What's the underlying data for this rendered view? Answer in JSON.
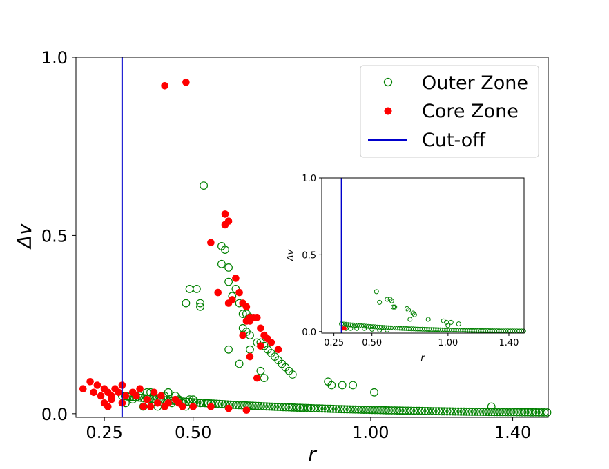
{
  "chart_data": [
    {
      "type": "scatter",
      "role": "main",
      "xlabel": "r",
      "ylabel": "Δv",
      "xlim": [
        0.17,
        1.5
      ],
      "ylim": [
        -0.01,
        1.0
      ],
      "xticks": [
        0.25,
        0.5,
        1.0,
        1.4
      ],
      "xtick_labels": [
        "0.25",
        "0.50",
        "1.00",
        "1.40"
      ],
      "yticks": [
        0.0,
        0.5,
        1.0
      ],
      "ytick_labels": [
        "0.0",
        "0.5",
        "1.0"
      ],
      "cutoff_x": 0.3,
      "legend": {
        "placement": "top-right",
        "entries": [
          {
            "label": "Outer Zone",
            "marker": "open-circle",
            "color": "#008000"
          },
          {
            "label": "Core Zone",
            "marker": "filled-circle",
            "color": "#ff0000"
          },
          {
            "label": "Cut-off",
            "marker": "line",
            "color": "#0000cc"
          }
        ]
      },
      "series": [
        {
          "name": "Outer Zone",
          "color": "#008000",
          "points": [
            [
              0.49,
              0.35
            ],
            [
              0.51,
              0.35
            ],
            [
              0.48,
              0.31
            ],
            [
              0.52,
              0.31
            ],
            [
              0.52,
              0.3
            ],
            [
              0.53,
              0.64
            ],
            [
              0.58,
              0.47
            ],
            [
              0.59,
              0.46
            ],
            [
              0.58,
              0.42
            ],
            [
              0.6,
              0.41
            ],
            [
              0.6,
              0.37
            ],
            [
              0.62,
              0.35
            ],
            [
              0.61,
              0.33
            ],
            [
              0.63,
              0.31
            ],
            [
              0.64,
              0.28
            ],
            [
              0.65,
              0.28
            ],
            [
              0.66,
              0.27
            ],
            [
              0.64,
              0.24
            ],
            [
              0.65,
              0.23
            ],
            [
              0.66,
              0.22
            ],
            [
              0.68,
              0.2
            ],
            [
              0.69,
              0.2
            ],
            [
              0.7,
              0.19
            ],
            [
              0.71,
              0.18
            ],
            [
              0.72,
              0.17
            ],
            [
              0.73,
              0.16
            ],
            [
              0.74,
              0.15
            ],
            [
              0.75,
              0.14
            ],
            [
              0.76,
              0.13
            ],
            [
              0.77,
              0.12
            ],
            [
              0.78,
              0.11
            ],
            [
              0.63,
              0.14
            ],
            [
              0.6,
              0.18
            ],
            [
              0.66,
              0.18
            ],
            [
              0.69,
              0.12
            ],
            [
              0.7,
              0.1
            ],
            [
              0.88,
              0.09
            ],
            [
              0.89,
              0.08
            ],
            [
              0.92,
              0.08
            ],
            [
              0.95,
              0.08
            ],
            [
              1.01,
              0.06
            ],
            [
              1.34,
              0.02
            ],
            [
              0.31,
              0.03
            ],
            [
              0.33,
              0.04
            ],
            [
              0.35,
              0.05
            ],
            [
              0.37,
              0.06
            ],
            [
              0.39,
              0.05
            ],
            [
              0.41,
              0.04
            ],
            [
              0.43,
              0.06
            ],
            [
              0.45,
              0.05
            ],
            [
              0.47,
              0.03
            ],
            [
              0.49,
              0.04
            ],
            [
              0.36,
              0.02
            ],
            [
              0.4,
              0.02
            ],
            [
              0.44,
              0.03
            ],
            [
              0.48,
              0.02
            ],
            [
              0.52,
              0.03
            ],
            [
              0.38,
              0.06
            ],
            [
              0.42,
              0.05
            ],
            [
              0.46,
              0.04
            ],
            [
              0.5,
              0.04
            ],
            [
              0.54,
              0.03
            ]
          ]
        },
        {
          "name": "Core Zone",
          "color": "#ff0000",
          "points": [
            [
              0.42,
              0.92
            ],
            [
              0.48,
              0.93
            ],
            [
              0.59,
              0.56
            ],
            [
              0.6,
              0.54
            ],
            [
              0.59,
              0.53
            ],
            [
              0.55,
              0.48
            ],
            [
              0.62,
              0.38
            ],
            [
              0.57,
              0.34
            ],
            [
              0.63,
              0.34
            ],
            [
              0.6,
              0.31
            ],
            [
              0.61,
              0.32
            ],
            [
              0.64,
              0.31
            ],
            [
              0.65,
              0.3
            ],
            [
              0.66,
              0.27
            ],
            [
              0.67,
              0.27
            ],
            [
              0.68,
              0.27
            ],
            [
              0.65,
              0.26
            ],
            [
              0.66,
              0.26
            ],
            [
              0.69,
              0.24
            ],
            [
              0.64,
              0.22
            ],
            [
              0.7,
              0.22
            ],
            [
              0.71,
              0.21
            ],
            [
              0.72,
              0.2
            ],
            [
              0.69,
              0.19
            ],
            [
              0.74,
              0.18
            ],
            [
              0.66,
              0.16
            ],
            [
              0.68,
              0.1
            ],
            [
              0.19,
              0.07
            ],
            [
              0.21,
              0.09
            ],
            [
              0.22,
              0.06
            ],
            [
              0.23,
              0.08
            ],
            [
              0.24,
              0.05
            ],
            [
              0.25,
              0.07
            ],
            [
              0.26,
              0.06
            ],
            [
              0.27,
              0.05
            ],
            [
              0.28,
              0.07
            ],
            [
              0.29,
              0.06
            ],
            [
              0.25,
              0.03
            ],
            [
              0.27,
              0.04
            ],
            [
              0.3,
              0.08
            ],
            [
              0.31,
              0.05
            ],
            [
              0.33,
              0.06
            ],
            [
              0.35,
              0.07
            ],
            [
              0.37,
              0.04
            ],
            [
              0.39,
              0.06
            ],
            [
              0.41,
              0.05
            ],
            [
              0.43,
              0.03
            ],
            [
              0.45,
              0.04
            ],
            [
              0.47,
              0.02
            ],
            [
              0.36,
              0.02
            ],
            [
              0.4,
              0.03
            ],
            [
              0.26,
              0.02
            ],
            [
              0.3,
              0.03
            ],
            [
              0.34,
              0.05
            ],
            [
              0.38,
              0.02
            ],
            [
              0.42,
              0.02
            ],
            [
              0.46,
              0.03
            ],
            [
              0.5,
              0.02
            ],
            [
              0.55,
              0.02
            ],
            [
              0.6,
              0.015
            ],
            [
              0.65,
              0.01
            ]
          ]
        }
      ]
    },
    {
      "type": "scatter",
      "role": "inset",
      "xlabel": "r",
      "ylabel": "Δv",
      "xlim": [
        0.17,
        1.5
      ],
      "ylim": [
        -0.01,
        1.0
      ],
      "xticks": [
        0.25,
        0.5,
        1.0,
        1.4
      ],
      "xtick_labels": [
        "0.25",
        "0.50",
        "1.00",
        "1.40"
      ],
      "yticks": [
        0.0,
        0.5,
        1.0
      ],
      "ytick_labels": [
        "0.0",
        "0.5",
        "1.0"
      ],
      "cutoff_x": 0.3,
      "series": [
        {
          "name": "Outer Zone",
          "color": "#008000",
          "points": [
            [
              0.53,
              0.26
            ],
            [
              0.6,
              0.21
            ],
            [
              0.62,
              0.21
            ],
            [
              0.63,
              0.2
            ],
            [
              0.55,
              0.19
            ],
            [
              0.64,
              0.16
            ],
            [
              0.65,
              0.16
            ],
            [
              0.73,
              0.15
            ],
            [
              0.74,
              0.14
            ],
            [
              0.77,
              0.12
            ],
            [
              0.78,
              0.11
            ],
            [
              0.75,
              0.08
            ],
            [
              0.87,
              0.08
            ],
            [
              0.97,
              0.07
            ],
            [
              0.99,
              0.06
            ],
            [
              1.02,
              0.06
            ],
            [
              1.07,
              0.05
            ],
            [
              1.0,
              0.04
            ],
            [
              0.33,
              0.02
            ],
            [
              0.36,
              0.02
            ],
            [
              0.4,
              0.02
            ],
            [
              0.45,
              0.02
            ],
            [
              0.5,
              0.015
            ],
            [
              0.55,
              0.01
            ],
            [
              0.6,
              0.01
            ]
          ]
        },
        {
          "name": "Core Zone",
          "color": "#ff0000",
          "points": [
            [
              0.31,
              0.02
            ],
            [
              0.32,
              0.02
            ]
          ]
        }
      ]
    }
  ]
}
